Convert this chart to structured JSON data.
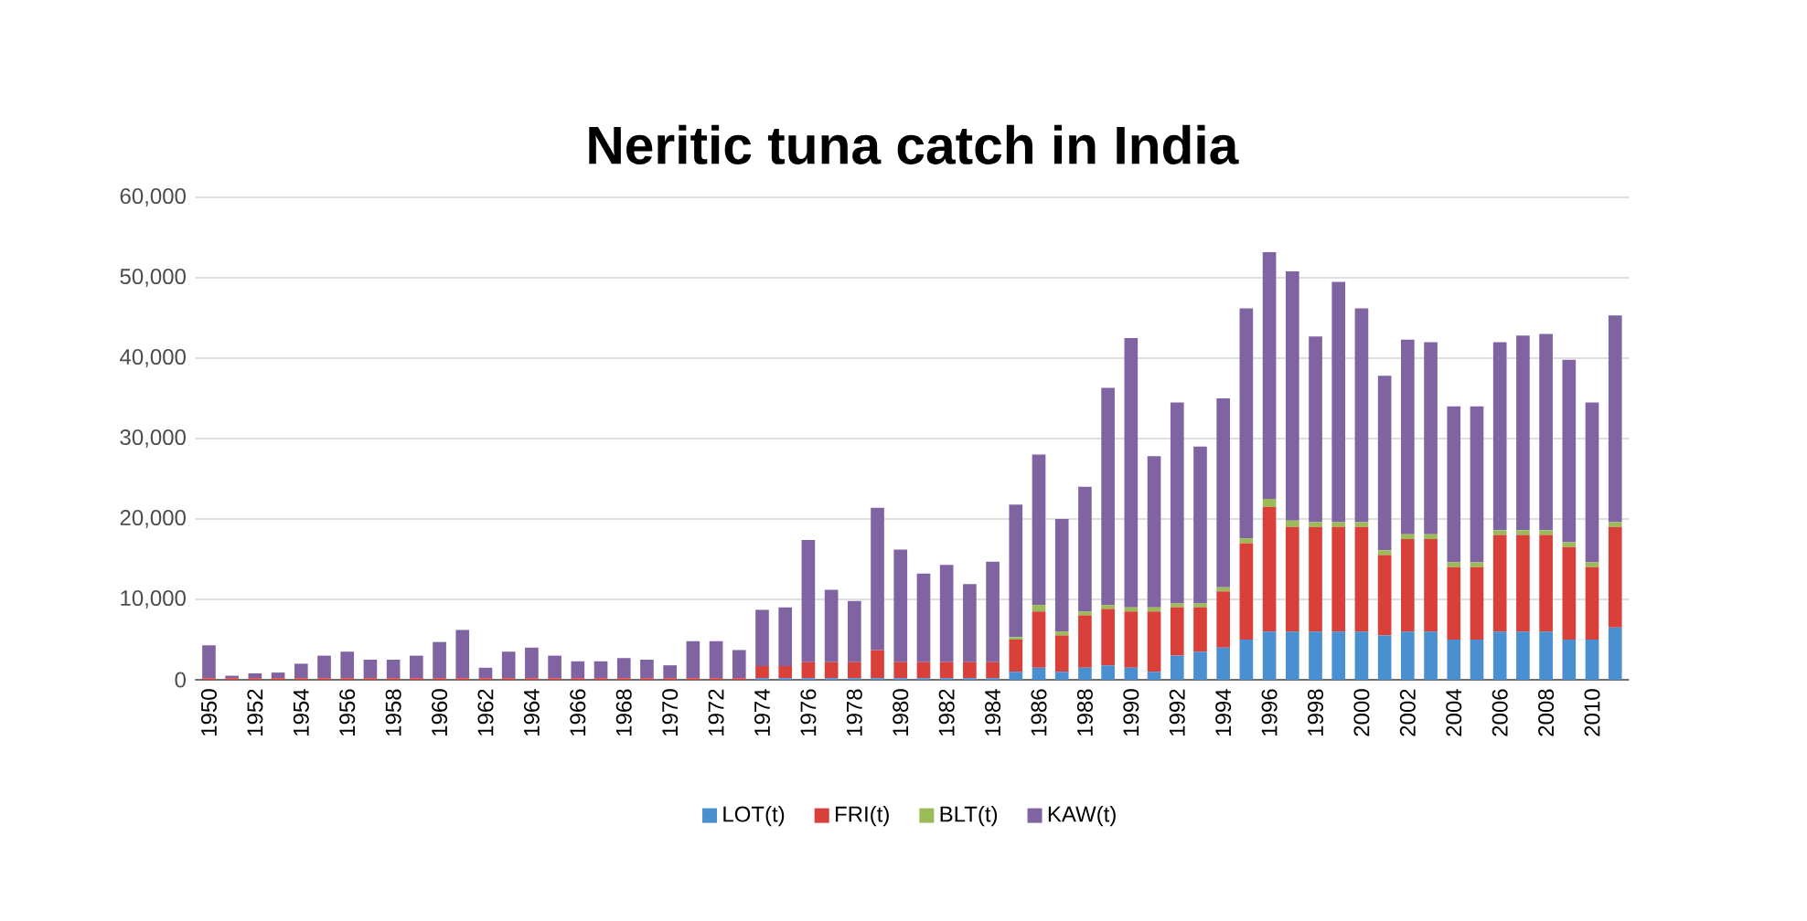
{
  "chart_data": {
    "type": "bar",
    "stacked": true,
    "title": "Neritic tuna catch in India",
    "categories": [
      "1950",
      null,
      "1952",
      null,
      "1954",
      null,
      "1956",
      null,
      "1958",
      null,
      "1960",
      null,
      "1962",
      null,
      "1964",
      null,
      "1966",
      null,
      "1968",
      null,
      "1970",
      null,
      "1972",
      null,
      "1974",
      null,
      "1976",
      null,
      "1978",
      null,
      "1980",
      null,
      "1982",
      null,
      "1984",
      null,
      "1986",
      null,
      "1988",
      null,
      "1990",
      null,
      "1992",
      null,
      "1994",
      null,
      "1996",
      null,
      "1998",
      null,
      "2000",
      null,
      "2002",
      null,
      "2004",
      null,
      "2006",
      null,
      "2008",
      null,
      "2010",
      null
    ],
    "series": [
      {
        "name": "LOT(t)",
        "color": "#4a8fd0",
        "values": [
          0,
          0,
          0,
          0,
          0,
          0,
          0,
          0,
          0,
          0,
          0,
          0,
          0,
          0,
          0,
          0,
          0,
          0,
          0,
          0,
          0,
          0,
          0,
          0,
          200,
          200,
          200,
          200,
          200,
          200,
          200,
          200,
          200,
          200,
          200,
          1000,
          1500,
          1000,
          1500,
          1800,
          1500,
          1000,
          3000,
          3500,
          4000,
          5000,
          6000,
          6000,
          6000,
          6000,
          6000,
          5500,
          6000,
          6000,
          5000,
          5000,
          6000,
          6000,
          6000,
          5000,
          5000,
          6500
        ]
      },
      {
        "name": "FRI(t)",
        "color": "#d9403a",
        "values": [
          200,
          200,
          200,
          200,
          200,
          200,
          200,
          200,
          200,
          200,
          200,
          200,
          200,
          200,
          200,
          200,
          200,
          200,
          200,
          200,
          200,
          200,
          200,
          200,
          1500,
          1500,
          2000,
          2000,
          2000,
          3500,
          2000,
          2000,
          2000,
          2000,
          2000,
          4000,
          7000,
          4500,
          6500,
          7000,
          7000,
          7500,
          6000,
          5500,
          7000,
          12000,
          15500,
          13000,
          13000,
          13000,
          13000,
          10000,
          11500,
          11500,
          9000,
          9000,
          12000,
          12000,
          12000,
          11500,
          9000,
          12500
        ]
      },
      {
        "name": "BLT(t)",
        "color": "#9bbb59",
        "values": [
          0,
          0,
          0,
          0,
          0,
          0,
          0,
          0,
          0,
          0,
          0,
          0,
          0,
          0,
          0,
          0,
          0,
          0,
          0,
          0,
          0,
          0,
          0,
          0,
          0,
          0,
          0,
          0,
          0,
          0,
          0,
          0,
          0,
          0,
          0,
          300,
          800,
          500,
          500,
          500,
          500,
          500,
          500,
          500,
          500,
          600,
          1000,
          800,
          600,
          600,
          600,
          600,
          600,
          600,
          600,
          600,
          600,
          600,
          600,
          600,
          600,
          600
        ]
      },
      {
        "name": "KAW(t)",
        "color": "#8064a2",
        "values": [
          4100,
          300,
          600,
          700,
          1800,
          2800,
          3300,
          2300,
          2300,
          2800,
          4500,
          6000,
          1300,
          3300,
          3800,
          2800,
          2100,
          2100,
          2500,
          2300,
          1600,
          4600,
          4600,
          3500,
          7000,
          7300,
          15200,
          9000,
          7600,
          17700,
          14000,
          11000,
          12100,
          9700,
          12500,
          16500,
          18700,
          14000,
          15500,
          27000,
          33500,
          18800,
          25000,
          19500,
          23500,
          28600,
          30700,
          31000,
          23100,
          29900,
          26600,
          21700,
          24200,
          23900,
          19400,
          19400,
          23400,
          24200,
          24400,
          22700,
          19900,
          25700
        ]
      }
    ],
    "ylim": [
      0,
      60000
    ],
    "yticks": [
      0,
      {
        "value": 10000,
        "label": "10,000"
      },
      {
        "value": 20000,
        "label": "20,000"
      },
      {
        "value": 30000,
        "label": "30,000"
      },
      {
        "value": 40000,
        "label": "40,000"
      },
      {
        "value": 50000,
        "label": "50,000"
      },
      {
        "value": 60000,
        "label": "60,000"
      }
    ],
    "grid": "y",
    "legend": "bottom"
  }
}
